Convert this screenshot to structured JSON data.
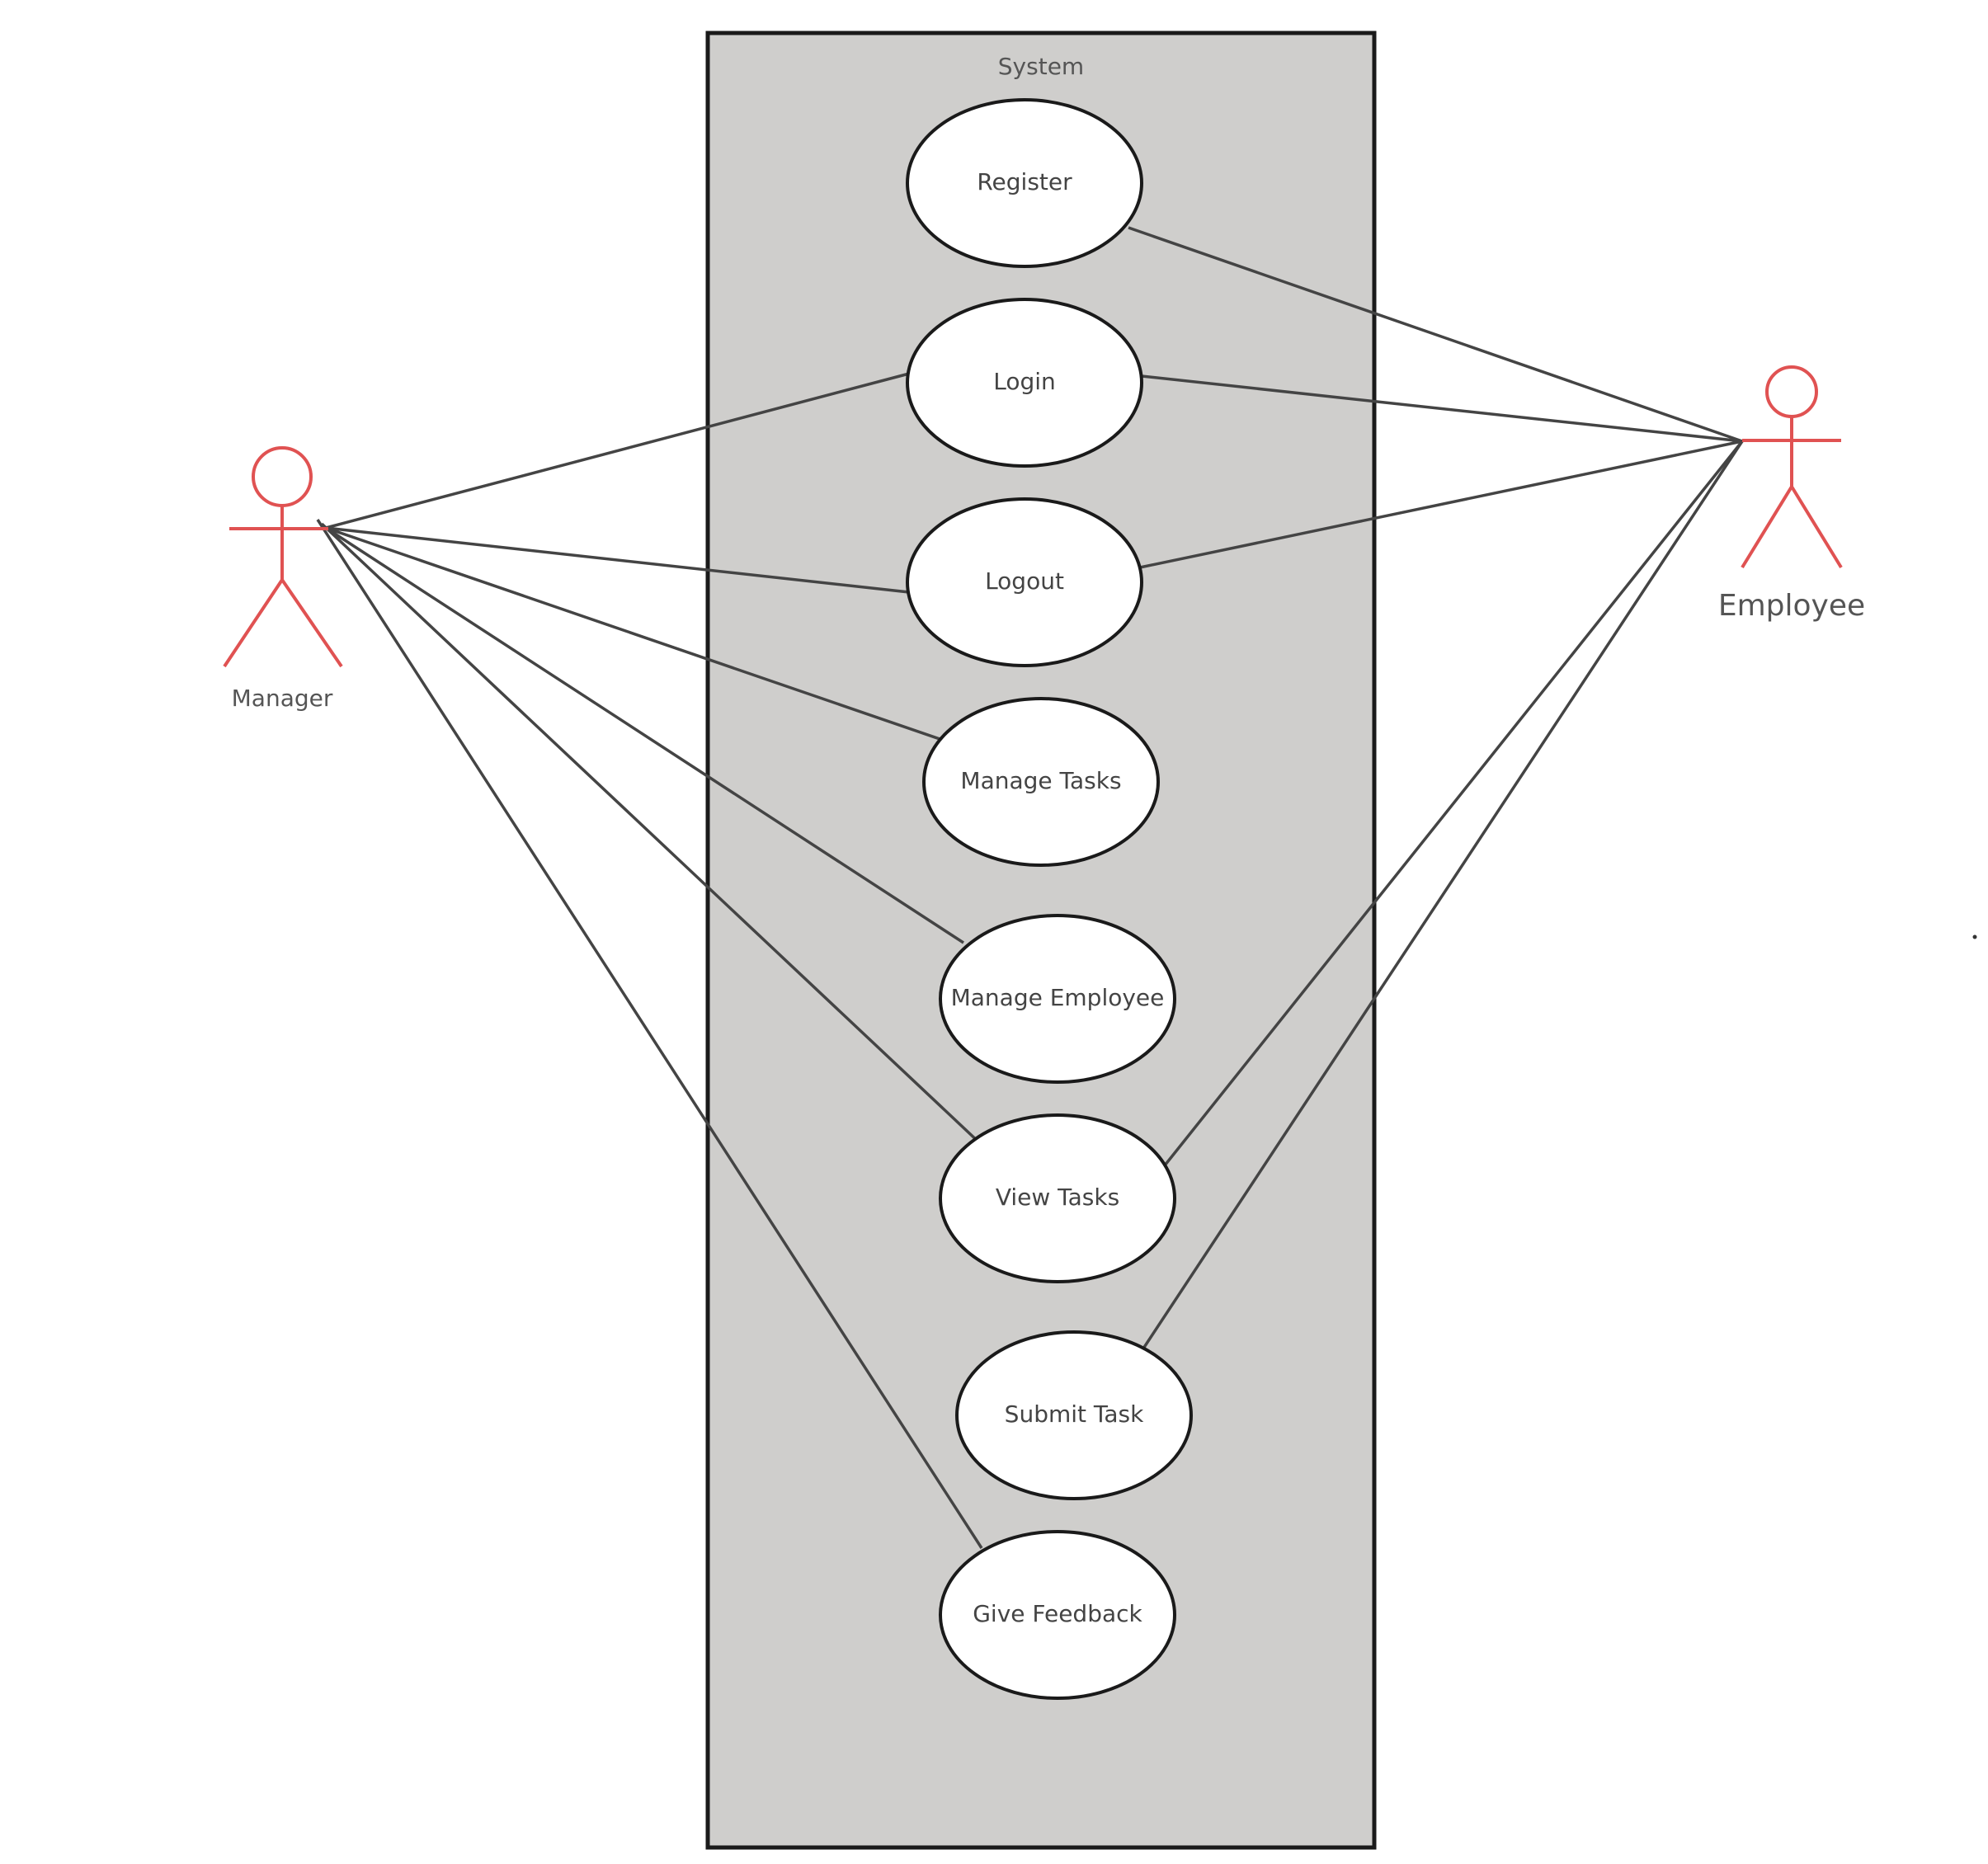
{
  "system": {
    "title": "System"
  },
  "use_cases": [
    {
      "id": "register",
      "label": "Register"
    },
    {
      "id": "login",
      "label": "Login"
    },
    {
      "id": "logout",
      "label": "Logout"
    },
    {
      "id": "manage-tasks",
      "label": "Manage Tasks"
    },
    {
      "id": "manage-employee",
      "label": "Manage Employee"
    },
    {
      "id": "view-tasks",
      "label": "View Tasks"
    },
    {
      "id": "submit-task",
      "label": "Submit Task"
    },
    {
      "id": "give-feedback",
      "label": "Give Feedback"
    }
  ],
  "actors": {
    "manager": {
      "label": "Manager"
    },
    "employee": {
      "label": "Employee"
    }
  },
  "associations": [
    {
      "actor": "manager",
      "use_case": "login"
    },
    {
      "actor": "manager",
      "use_case": "logout"
    },
    {
      "actor": "manager",
      "use_case": "manage-tasks"
    },
    {
      "actor": "manager",
      "use_case": "manage-employee"
    },
    {
      "actor": "manager",
      "use_case": "view-tasks"
    },
    {
      "actor": "manager",
      "use_case": "give-feedback"
    },
    {
      "actor": "employee",
      "use_case": "register"
    },
    {
      "actor": "employee",
      "use_case": "login"
    },
    {
      "actor": "employee",
      "use_case": "logout"
    },
    {
      "actor": "employee",
      "use_case": "view-tasks"
    },
    {
      "actor": "employee",
      "use_case": "submit-task"
    }
  ],
  "colors": {
    "actor": "#e05252",
    "system_fill": "#cfcecc",
    "line": "#444444"
  }
}
